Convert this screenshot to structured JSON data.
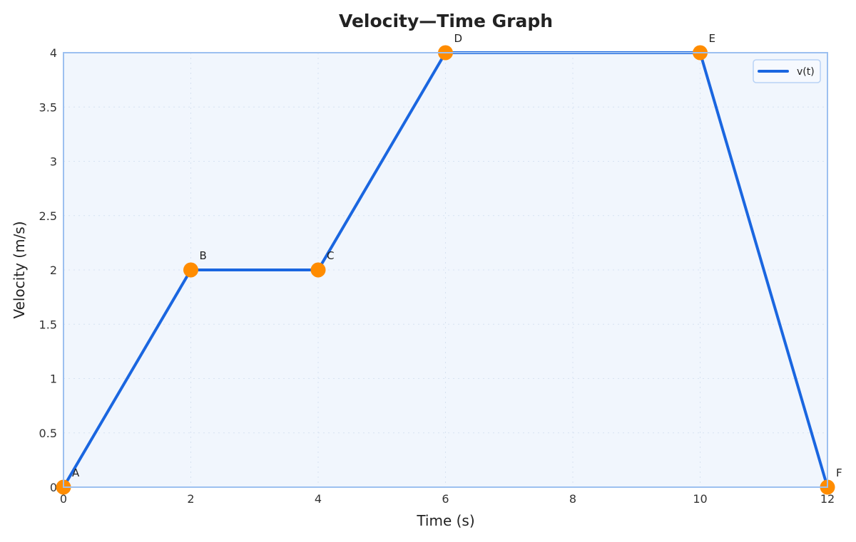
{
  "chart_data": {
    "type": "line",
    "title": "Velocity—Time Graph",
    "xlabel": "Time (s)",
    "ylabel": "Velocity (m/s)",
    "xlim": [
      0,
      12
    ],
    "ylim": [
      0,
      4
    ],
    "x_ticks": [
      0,
      2,
      4,
      6,
      8,
      10,
      12
    ],
    "x_tick_labels": [
      "0",
      "2",
      "4",
      "6",
      "8",
      "10",
      "12"
    ],
    "y_ticks": [
      0,
      0.5,
      1,
      1.5,
      2,
      2.5,
      3,
      3.5,
      4
    ],
    "y_tick_labels": [
      "0",
      "0.5",
      "1",
      "1.5",
      "2",
      "2.5",
      "3",
      "3.5",
      "4"
    ],
    "grid": true,
    "legend_position": "upper right",
    "series": [
      {
        "name": "v(t)",
        "color": "#1a66e0",
        "x": [
          0,
          2,
          4,
          6,
          10,
          12
        ],
        "values": [
          0,
          2,
          2,
          4,
          4,
          0
        ]
      }
    ],
    "points": [
      {
        "label": "A",
        "x": 0,
        "y": 0
      },
      {
        "label": "B",
        "x": 2,
        "y": 2
      },
      {
        "label": "C",
        "x": 4,
        "y": 2
      },
      {
        "label": "D",
        "x": 6,
        "y": 4
      },
      {
        "label": "E",
        "x": 10,
        "y": 4
      },
      {
        "label": "F",
        "x": 12,
        "y": 0
      }
    ],
    "marker_color": "#ff8c00"
  },
  "colors": {
    "line": "#1a66e0",
    "marker": "#ff8c00",
    "plot_bg": "#f1f6fd",
    "frame": "#9cc0f0"
  }
}
